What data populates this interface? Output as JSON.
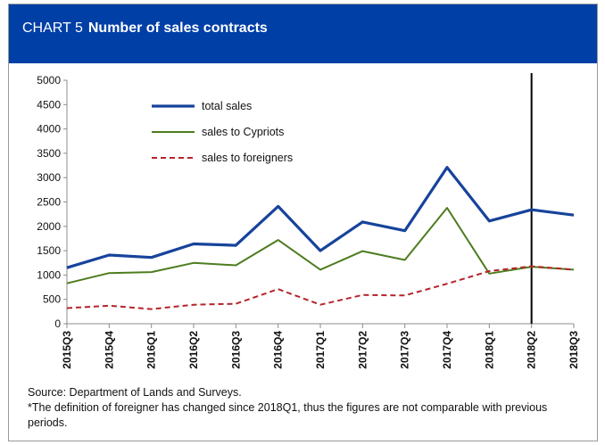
{
  "header": {
    "prefix": "CHART 5",
    "title": "Number of sales contracts"
  },
  "chart_data": {
    "type": "line",
    "categories": [
      "2015Q3",
      "2015Q4",
      "2016Q1",
      "2016Q2",
      "2016Q3",
      "2016Q4",
      "2017Q1",
      "2017Q2",
      "2017Q3",
      "2017Q4",
      "2018Q1",
      "2018Q2",
      "2018Q3"
    ],
    "ylim": [
      0,
      5000
    ],
    "yticks": [
      0,
      500,
      1000,
      1500,
      2000,
      2500,
      3000,
      3500,
      4000,
      4500,
      5000
    ],
    "series": [
      {
        "name": "total sales",
        "color": "#17439b",
        "style": "solid",
        "values": [
          1150,
          1410,
          1360,
          1640,
          1610,
          2410,
          1500,
          2090,
          1910,
          3210,
          2110,
          2340,
          2230
        ]
      },
      {
        "name": "sales to Cypriots",
        "color": "#4e7c1f",
        "style": "solid",
        "values": [
          830,
          1040,
          1060,
          1250,
          1200,
          1720,
          1110,
          1490,
          1310,
          2380,
          1030,
          1170,
          1110
        ]
      },
      {
        "name": "sales to foreigners",
        "color": "#b5242a",
        "style": "dashed",
        "values": [
          320,
          370,
          300,
          390,
          410,
          710,
          390,
          590,
          580,
          820,
          1080,
          1180,
          1110
        ]
      }
    ],
    "marker_category": "2018Q2",
    "legend_position": "top-left inside plot",
    "grid": false
  },
  "notes": {
    "source": "Source: Department of Lands and Surveys.",
    "footnote": "*The definition of foreigner has changed since 2018Q1, thus the figures are not comparable with previous periods."
  }
}
